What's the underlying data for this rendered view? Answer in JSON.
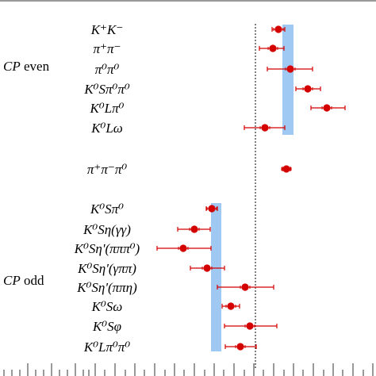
{
  "chart_data": {
    "type": "scatter",
    "orientation": "horizontal",
    "title": "",
    "xlabel": "",
    "ylabel": "",
    "xlim": [
      0,
      470
    ],
    "reference_line": {
      "x": 322,
      "style": "dotted"
    },
    "groups": [
      {
        "label_italic": "CP",
        "label_rest": " even",
        "band": {
          "xmin": 356,
          "xmax": 370
        },
        "items": [
          {
            "label": "K⁺K⁻",
            "value": 351,
            "err_low": 8,
            "err_high": 8
          },
          {
            "label": "π⁺π⁻",
            "value": 344,
            "err_low": 17,
            "err_high": 14
          },
          {
            "label": "π⁰π⁰",
            "value": 366,
            "err_low": 29,
            "err_high": 28
          },
          {
            "label": "K⁰Sπ⁰π⁰",
            "value": 388,
            "err_low": 15,
            "err_high": 16
          },
          {
            "label": "K⁰Lπ⁰",
            "value": 412,
            "err_low": 20,
            "err_high": 23
          },
          {
            "label": "K⁰Lω",
            "value": 334,
            "err_low": 26,
            "err_high": 25
          }
        ]
      },
      {
        "label_italic": "",
        "label_rest": "",
        "band": null,
        "items": [
          {
            "label": "π⁺π⁻π⁰",
            "value": 361,
            "err_low": 5,
            "err_high": 5
          }
        ]
      },
      {
        "label_italic": "CP",
        "label_rest": " odd",
        "band": {
          "xmin": 266,
          "xmax": 279
        },
        "items": [
          {
            "label": "K⁰Sπ⁰",
            "value": 267,
            "err_low": 7,
            "err_high": 7
          },
          {
            "label": "K⁰Sη(γγ)",
            "value": 245,
            "err_low": 21,
            "err_high": 20
          },
          {
            "label": "K⁰Sη'(πππ⁰)",
            "value": 231,
            "err_low": 33,
            "err_high": 35
          },
          {
            "label": "K⁰Sη'(γππ)",
            "value": 261,
            "err_low": 21,
            "err_high": 22
          },
          {
            "label": "K⁰Sη'(ππη)",
            "value": 309,
            "err_low": 35,
            "err_high": 36
          },
          {
            "label": "K⁰Sω",
            "value": 291,
            "err_low": 11,
            "err_high": 11
          },
          {
            "label": "K⁰Sφ",
            "value": 315,
            "err_low": 32,
            "err_high": 34
          },
          {
            "label": "K⁰Lπ⁰π⁰",
            "value": 303,
            "err_low": 19,
            "err_high": 20
          }
        ]
      }
    ],
    "colors": {
      "point": "#d40000",
      "band": "#9fc8f2",
      "axis": "#333333"
    },
    "x_ticks": [
      35,
      65,
      95,
      120,
      145,
      170,
      195,
      220,
      245,
      270,
      295,
      320,
      345,
      370,
      395,
      420,
      445,
      470
    ],
    "x_minor_ticks": [
      5,
      15,
      25,
      45,
      55,
      75,
      85,
      105,
      112,
      132,
      158,
      182,
      208,
      232,
      258,
      282,
      308,
      332,
      358,
      382,
      408,
      432,
      458
    ]
  }
}
